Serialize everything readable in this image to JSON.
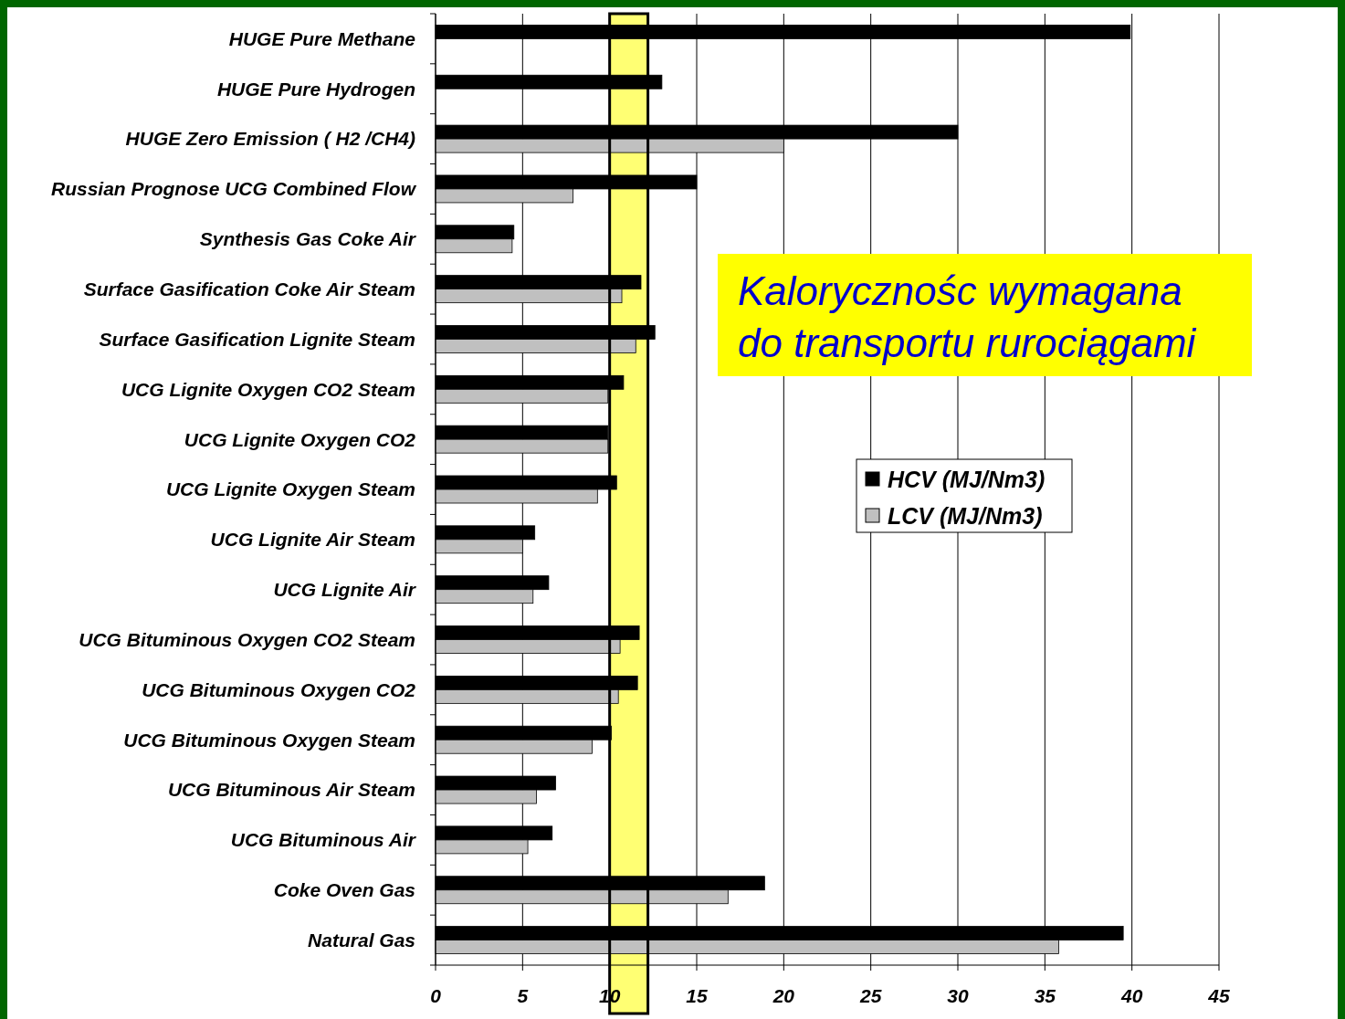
{
  "chart_data": {
    "type": "bar",
    "orientation": "horizontal",
    "categories": [
      "HUGE Pure Methane",
      "HUGE Pure Hydrogen",
      "HUGE  Zero Emission ( H2 /CH4)",
      "Russian Prognose UCG Combined Flow",
      "Synthesis Gas Coke Air",
      "Surface Gasification Coke Air Steam",
      "Surface Gasification Lignite Steam",
      "UCG Lignite Oxygen CO2 Steam",
      "UCG Lignite Oxygen CO2",
      "UCG Lignite Oxygen Steam",
      "UCG Lignite Air Steam",
      "UCG Lignite Air",
      "UCG Bituminous Oxygen CO2 Steam",
      "UCG Bituminous Oxygen CO2",
      "UCG Bituminous Oxygen Steam",
      "UCG Bituminous Air Steam",
      "UCG Bituminous Air",
      "Coke Oven Gas",
      "Natural Gas"
    ],
    "series": [
      {
        "name": "HCV (MJ/Nm3)",
        "color": "#000000",
        "values": [
          39.9,
          13.0,
          30.0,
          15.0,
          4.5,
          11.8,
          12.6,
          10.8,
          9.9,
          10.4,
          5.7,
          6.5,
          11.7,
          11.6,
          10.1,
          6.9,
          6.7,
          18.9,
          39.5
        ]
      },
      {
        "name": "LCV (MJ/Nm3)",
        "color": "#c0c0c0",
        "values": [
          null,
          null,
          20.0,
          7.9,
          4.4,
          10.7,
          11.5,
          9.9,
          9.9,
          9.3,
          5.0,
          5.6,
          10.6,
          10.5,
          9.0,
          5.8,
          5.3,
          16.8,
          35.8
        ]
      }
    ],
    "xlim": [
      0,
      45
    ],
    "xticks": [
      0,
      5,
      10,
      15,
      20,
      25,
      30,
      35,
      40,
      45
    ],
    "grid": "x",
    "legend": "right",
    "bands": [
      {
        "axis": "x",
        "from": 10,
        "to": 12.2,
        "label": "Kalorycznośc wymagana do transportu rurociągami",
        "color": "#ffff00"
      }
    ]
  }
}
